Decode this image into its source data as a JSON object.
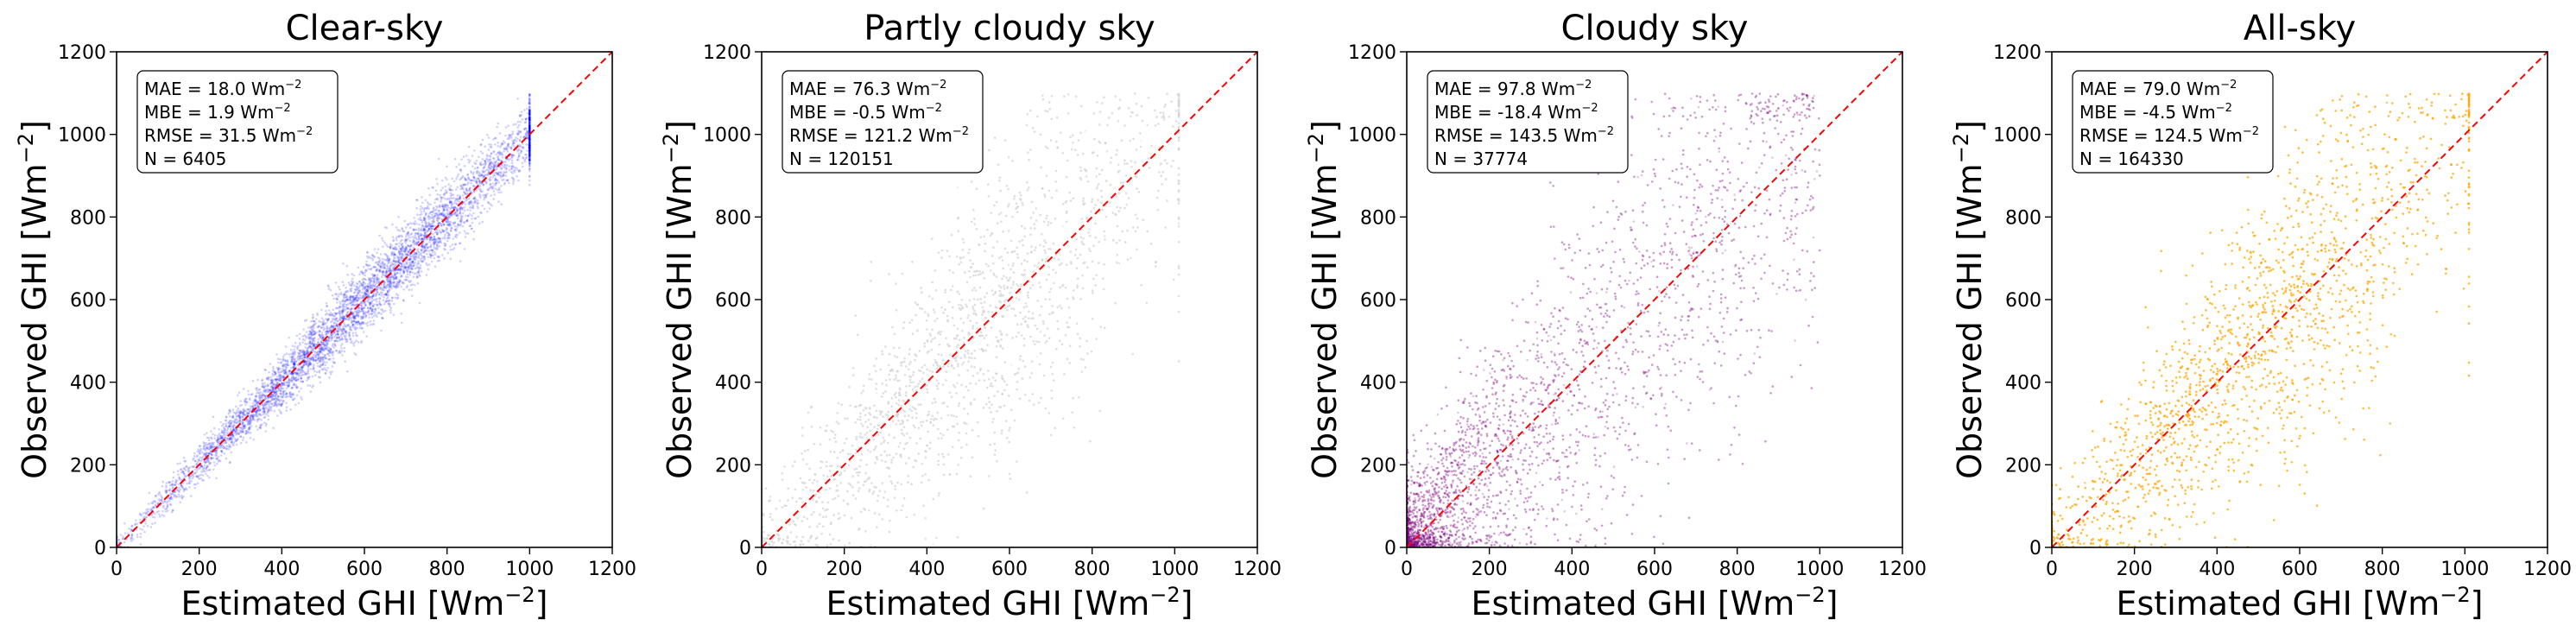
{
  "chart_data": [
    {
      "type": "scatter",
      "title": "Clear-sky",
      "xlabel": "Estimated GHI [Wm$^{-2}$]",
      "xlabel_main": "Estimated GHI [Wm",
      "xlabel_sup": "−2",
      "xlabel_close": "]",
      "ylabel_main": "Observed GHI [Wm",
      "ylabel_sup": "−2",
      "ylabel_close": "]",
      "xlim": [
        0,
        1200
      ],
      "ylim": [
        0,
        1200
      ],
      "xticks": [
        0,
        200,
        400,
        600,
        800,
        1000,
        1200
      ],
      "yticks": [
        0,
        200,
        400,
        600,
        800,
        1000,
        1200
      ],
      "color": "#0000ff",
      "point_opacity": 0.18,
      "spread": 0.035,
      "density_center": 0.6,
      "x_max": 1000,
      "reference_line": {
        "x": [
          0,
          1200
        ],
        "y": [
          0,
          1200
        ],
        "color": "#ff0000",
        "style": "dashed"
      },
      "stats": [
        {
          "label": "MAE = 18.0 Wm",
          "sup": "−2"
        },
        {
          "label": "MBE = 1.9 Wm",
          "sup": "−2"
        },
        {
          "label": "RMSE = 31.5 Wm",
          "sup": "−2"
        },
        {
          "label": "N = 6405",
          "sup": ""
        }
      ]
    },
    {
      "type": "scatter",
      "title": "Partly cloudy sky",
      "xlabel_main": "Estimated GHI [Wm",
      "xlabel_sup": "−2",
      "xlabel_close": "]",
      "ylabel_main": "Observed GHI [Wm",
      "ylabel_sup": "−2",
      "ylabel_close": "]",
      "xlim": [
        0,
        1200
      ],
      "ylim": [
        0,
        1200
      ],
      "xticks": [
        0,
        200,
        400,
        600,
        800,
        1000,
        1200
      ],
      "yticks": [
        0,
        200,
        400,
        600,
        800,
        1000,
        1200
      ],
      "color": "#d3d3d3",
      "point_opacity": 0.35,
      "spread": 0.16,
      "density_center": 0.5,
      "x_max": 1010,
      "reference_line": {
        "x": [
          0,
          1200
        ],
        "y": [
          0,
          1200
        ],
        "color": "#ff0000",
        "style": "dashed"
      },
      "stats": [
        {
          "label": "MAE = 76.3 Wm",
          "sup": "−2"
        },
        {
          "label": "MBE = -0.5 Wm",
          "sup": "−2"
        },
        {
          "label": "RMSE = 121.2 Wm",
          "sup": "−2"
        },
        {
          "label": "N = 120151",
          "sup": ""
        }
      ]
    },
    {
      "type": "scatter",
      "title": "Cloudy sky",
      "xlabel_main": "Estimated GHI [Wm",
      "xlabel_sup": "−2",
      "xlabel_close": "]",
      "ylabel_main": "Observed GHI [Wm",
      "ylabel_sup": "−2",
      "ylabel_close": "]",
      "xlim": [
        0,
        1200
      ],
      "ylim": [
        0,
        1200
      ],
      "xticks": [
        0,
        200,
        400,
        600,
        800,
        1000,
        1200
      ],
      "yticks": [
        0,
        200,
        400,
        600,
        800,
        1000,
        1200
      ],
      "color": "#800080",
      "point_opacity": 0.22,
      "spread": 0.2,
      "density_center": 0.25,
      "x_max": 1000,
      "reference_line": {
        "x": [
          0,
          1200
        ],
        "y": [
          0,
          1200
        ],
        "color": "#ff0000",
        "style": "dashed"
      },
      "stats": [
        {
          "label": "MAE = 97.8 Wm",
          "sup": "−2"
        },
        {
          "label": "MBE = -18.4 Wm",
          "sup": "−2"
        },
        {
          "label": "RMSE = 143.5 Wm",
          "sup": "−2"
        },
        {
          "label": "N = 37774",
          "sup": ""
        }
      ]
    },
    {
      "type": "scatter",
      "title": "All-sky",
      "xlabel_main": "Estimated GHI [Wm",
      "xlabel_sup": "−2",
      "xlabel_close": "]",
      "ylabel_main": "Observed GHI [Wm",
      "ylabel_sup": "−2",
      "ylabel_close": "]",
      "xlim": [
        0,
        1200
      ],
      "ylim": [
        0,
        1200
      ],
      "xticks": [
        0,
        200,
        400,
        600,
        800,
        1000,
        1200
      ],
      "yticks": [
        0,
        200,
        400,
        600,
        800,
        1000,
        1200
      ],
      "color": "#ffa500",
      "point_opacity": 0.35,
      "spread": 0.17,
      "density_center": 0.5,
      "x_max": 1010,
      "reference_line": {
        "x": [
          0,
          1200
        ],
        "y": [
          0,
          1200
        ],
        "color": "#ff0000",
        "style": "dashed"
      },
      "stats": [
        {
          "label": "MAE = 79.0 Wm",
          "sup": "−2"
        },
        {
          "label": "MBE = -4.5 Wm",
          "sup": "−2"
        },
        {
          "label": "RMSE = 124.5 Wm",
          "sup": "−2"
        },
        {
          "label": "N = 164330",
          "sup": ""
        }
      ]
    }
  ]
}
